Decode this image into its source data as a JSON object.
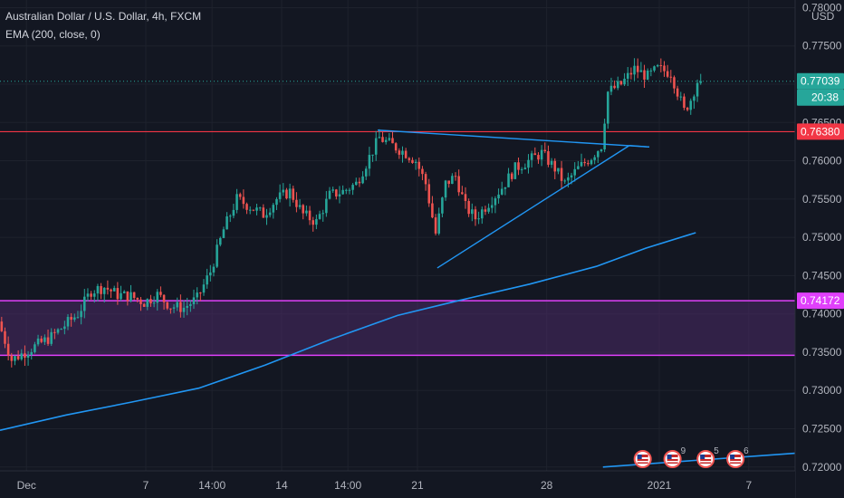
{
  "legend": {
    "title": "Australian Dollar / U.S. Dollar, 4h, FXCM",
    "indicator": "EMA (200, close, 0)"
  },
  "axis": {
    "currency": "USD",
    "countdown": "20:38"
  },
  "colors": {
    "background": "#131722",
    "up": "#26a69a",
    "down": "#ef5350",
    "ema": "#2196f3",
    "trendline": "#2196f3",
    "resistance": "#f23645",
    "zone_border": "#e040fb",
    "zone_fill": "#4a2a66",
    "last_price": "#26a69a",
    "text": "#b2b5be"
  },
  "chart_data": {
    "type": "candlestick",
    "symbol": "AUDUSD",
    "timeframe": "4h",
    "ylim": [
      0.7195,
      0.781
    ],
    "xlim": [
      0,
      240
    ],
    "y_ticks": [
      "0.78000",
      "0.77500",
      "0.77000",
      "0.76500",
      "0.76000",
      "0.75500",
      "0.75000",
      "0.74500",
      "0.74000",
      "0.73500",
      "0.73000",
      "0.72500",
      "0.72000"
    ],
    "y_tick_values": [
      0.78,
      0.775,
      0.77,
      0.765,
      0.76,
      0.755,
      0.75,
      0.745,
      0.74,
      0.735,
      0.73,
      0.725,
      0.72
    ],
    "x_ticks": [
      {
        "label": "Dec",
        "bar": 8
      },
      {
        "label": "7",
        "bar": 44
      },
      {
        "label": "14:00",
        "bar": 64
      },
      {
        "label": "14",
        "bar": 85
      },
      {
        "label": "14:00",
        "bar": 105
      },
      {
        "label": "21",
        "bar": 126
      },
      {
        "label": "28",
        "bar": 165
      },
      {
        "label": "2021",
        "bar": 199
      },
      {
        "label": "7",
        "bar": 226
      }
    ],
    "price_labels": [
      {
        "value": 0.77039,
        "text": "0.77039",
        "kind": "last"
      },
      {
        "value": 0.7638,
        "text": "0.76380",
        "kind": "resistance"
      },
      {
        "value": 0.74172,
        "text": "0.74172",
        "kind": "zone"
      }
    ],
    "horizontal_lines": [
      {
        "name": "resistance",
        "value": 0.7638
      }
    ],
    "zone": {
      "top": 0.74172,
      "bottom": 0.7346
    },
    "trendlines": [
      {
        "name": "triangle-upper",
        "x1": 114,
        "y1": 0.764,
        "x2": 196,
        "y2": 0.7618
      },
      {
        "name": "triangle-lower",
        "x1": 132,
        "y1": 0.746,
        "x2": 190,
        "y2": 0.762
      },
      {
        "name": "triangle-cap",
        "x1": 190,
        "y1": 0.762,
        "x2": 196,
        "y2": 0.7618
      }
    ],
    "ema_200": {
      "name": "EMA 200",
      "points": [
        [
          0,
          0.7248
        ],
        [
          20,
          0.7268
        ],
        [
          40,
          0.7285
        ],
        [
          60,
          0.7303
        ],
        [
          80,
          0.7333
        ],
        [
          100,
          0.7367
        ],
        [
          120,
          0.7398
        ],
        [
          140,
          0.7419
        ],
        [
          160,
          0.7439
        ],
        [
          180,
          0.7462
        ],
        [
          195,
          0.7486
        ],
        [
          210,
          0.7506
        ]
      ]
    },
    "ema_lower_segment": [
      [
        182,
        0.72
      ],
      [
        240,
        0.7218
      ]
    ],
    "last_price": 0.77039,
    "anchors": [
      [
        0,
        0.739
      ],
      [
        4,
        0.734
      ],
      [
        8,
        0.735
      ],
      [
        12,
        0.736
      ],
      [
        16,
        0.737
      ],
      [
        20,
        0.7385
      ],
      [
        24,
        0.74
      ],
      [
        28,
        0.743
      ],
      [
        32,
        0.7435
      ],
      [
        36,
        0.7425
      ],
      [
        40,
        0.7423
      ],
      [
        44,
        0.7415
      ],
      [
        48,
        0.7425
      ],
      [
        52,
        0.741
      ],
      [
        56,
        0.7408
      ],
      [
        60,
        0.742
      ],
      [
        64,
        0.7455
      ],
      [
        68,
        0.751
      ],
      [
        72,
        0.755
      ],
      [
        76,
        0.754
      ],
      [
        80,
        0.753
      ],
      [
        84,
        0.755
      ],
      [
        88,
        0.756
      ],
      [
        92,
        0.753
      ],
      [
        96,
        0.752
      ],
      [
        100,
        0.7555
      ],
      [
        104,
        0.756
      ],
      [
        108,
        0.757
      ],
      [
        112,
        0.7605
      ],
      [
        115,
        0.763
      ],
      [
        119,
        0.762
      ],
      [
        123,
        0.761
      ],
      [
        126,
        0.76
      ],
      [
        129,
        0.757
      ],
      [
        132,
        0.7505
      ],
      [
        135,
        0.757
      ],
      [
        138,
        0.758
      ],
      [
        141,
        0.754
      ],
      [
        144,
        0.7525
      ],
      [
        148,
        0.7545
      ],
      [
        152,
        0.7565
      ],
      [
        156,
        0.759
      ],
      [
        160,
        0.76
      ],
      [
        164,
        0.761
      ],
      [
        168,
        0.759
      ],
      [
        171,
        0.757
      ],
      [
        175,
        0.759
      ],
      [
        179,
        0.7605
      ],
      [
        182,
        0.762
      ],
      [
        184,
        0.769
      ],
      [
        188,
        0.77
      ],
      [
        192,
        0.772
      ],
      [
        196,
        0.771
      ],
      [
        199,
        0.772
      ],
      [
        203,
        0.7715
      ],
      [
        205,
        0.769
      ],
      [
        207,
        0.7665
      ],
      [
        209,
        0.768
      ],
      [
        211,
        0.77039
      ]
    ]
  },
  "event_icons": [
    {
      "icon": "us-flag-icon",
      "bar": 194,
      "label": ""
    },
    {
      "icon": "us-flag-icon",
      "bar": 203,
      "label": "9"
    },
    {
      "icon": "us-flag-icon",
      "bar": 213,
      "label": "5"
    },
    {
      "icon": "us-flag-icon",
      "bar": 222,
      "label": "6"
    }
  ]
}
